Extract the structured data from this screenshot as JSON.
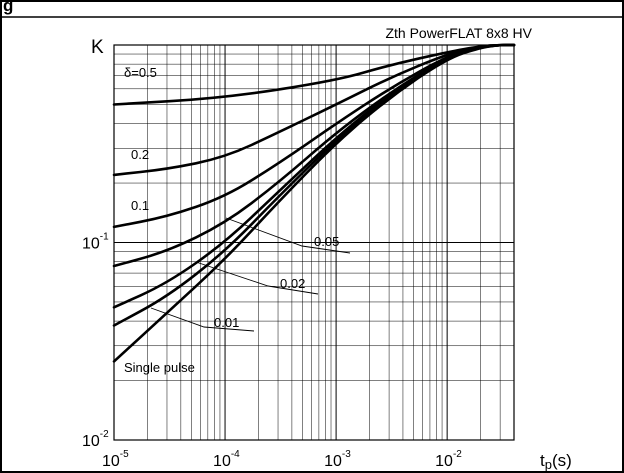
{
  "page_title_fragment": "g",
  "chart_data": {
    "type": "line",
    "title": "Zth PowerFLAT 8x8 HV",
    "ylabel": "K",
    "xlabel": "tp(s)",
    "x_scale": "log",
    "y_scale": "log",
    "xlim": [
      1e-05,
      0.04
    ],
    "ylim": [
      0.01,
      1
    ],
    "x_ticks": [
      {
        "value": 1e-05,
        "base": "10",
        "exp": "-5"
      },
      {
        "value": 0.0001,
        "base": "10",
        "exp": "-4"
      },
      {
        "value": 0.001,
        "base": "10",
        "exp": "-3"
      },
      {
        "value": 0.01,
        "base": "10",
        "exp": "-2"
      }
    ],
    "y_ticks": [
      {
        "value": 0.1,
        "base": "10",
        "exp": "-1"
      },
      {
        "value": 0.01,
        "base": "10",
        "exp": "-2"
      }
    ],
    "grid": true,
    "series": [
      {
        "name": "δ=0.5",
        "label_text": "δ=0.5",
        "x": [
          1e-05,
          0.0001,
          0.001,
          0.003,
          0.01,
          0.02,
          0.03,
          0.04
        ],
        "y": [
          0.5,
          0.54,
          0.66,
          0.79,
          0.92,
          0.985,
          1.0,
          1.0
        ]
      },
      {
        "name": "0.2",
        "label_text": "0.2",
        "x": [
          1e-05,
          3e-05,
          0.0001,
          0.0003,
          0.001,
          0.003,
          0.01,
          0.02,
          0.03,
          0.04
        ],
        "y": [
          0.22,
          0.235,
          0.27,
          0.36,
          0.5,
          0.68,
          0.9,
          0.985,
          1.0,
          1.0
        ]
      },
      {
        "name": "0.1",
        "label_text": "0.1",
        "x": [
          1e-05,
          3e-05,
          0.0001,
          0.0003,
          0.001,
          0.003,
          0.01,
          0.02,
          0.03,
          0.04
        ],
        "y": [
          0.12,
          0.135,
          0.17,
          0.25,
          0.4,
          0.6,
          0.88,
          0.98,
          1.0,
          1.0
        ]
      },
      {
        "name": "0.05",
        "label_text": "0.05",
        "x": [
          1e-05,
          3e-05,
          0.0001,
          0.0003,
          0.001,
          0.003,
          0.01,
          0.02,
          0.03,
          0.04
        ],
        "y": [
          0.076,
          0.09,
          0.125,
          0.2,
          0.36,
          0.57,
          0.87,
          0.98,
          1.0,
          1.0
        ]
      },
      {
        "name": "0.02",
        "label_text": "0.02",
        "x": [
          1e-05,
          3e-05,
          0.0001,
          0.0003,
          0.001,
          0.003,
          0.01,
          0.02,
          0.03,
          0.04
        ],
        "y": [
          0.047,
          0.062,
          0.1,
          0.18,
          0.34,
          0.56,
          0.86,
          0.975,
          1.0,
          1.0
        ]
      },
      {
        "name": "0.01",
        "label_text": "0.01",
        "x": [
          1e-05,
          3e-05,
          0.0001,
          0.0003,
          0.001,
          0.003,
          0.01,
          0.02,
          0.03,
          0.04
        ],
        "y": [
          0.038,
          0.053,
          0.09,
          0.17,
          0.33,
          0.55,
          0.86,
          0.975,
          1.0,
          1.0
        ]
      },
      {
        "name": "Single pulse",
        "label_text": "Single pulse",
        "x": [
          1e-05,
          3e-05,
          0.0001,
          0.0003,
          0.001,
          0.003,
          0.01,
          0.02,
          0.03,
          0.04
        ],
        "y": [
          0.025,
          0.044,
          0.082,
          0.16,
          0.32,
          0.54,
          0.855,
          0.97,
          1.0,
          1.0
        ]
      }
    ]
  }
}
